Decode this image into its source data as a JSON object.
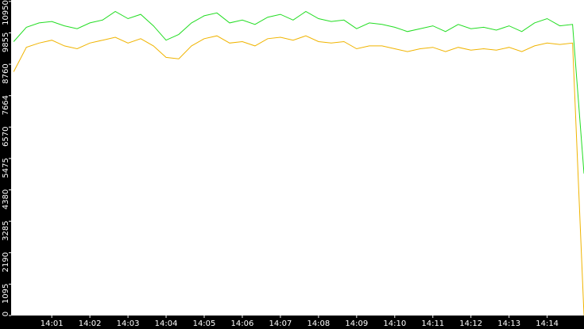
{
  "chart_data": {
    "type": "line",
    "x": [
      "14:00:00",
      "14:00:20",
      "14:00:40",
      "14:01:00",
      "14:01:20",
      "14:01:40",
      "14:02:00",
      "14:02:20",
      "14:02:40",
      "14:03:00",
      "14:03:20",
      "14:03:40",
      "14:04:00",
      "14:04:20",
      "14:04:40",
      "14:05:00",
      "14:05:20",
      "14:05:40",
      "14:06:00",
      "14:06:20",
      "14:06:40",
      "14:07:00",
      "14:07:20",
      "14:07:40",
      "14:08:00",
      "14:08:20",
      "14:08:40",
      "14:09:00",
      "14:09:20",
      "14:09:40",
      "14:10:00",
      "14:10:20",
      "14:10:40",
      "14:11:00",
      "14:11:20",
      "14:11:40",
      "14:12:00",
      "14:12:20",
      "14:12:40",
      "14:13:00",
      "14:13:20",
      "14:13:40",
      "14:14:00",
      "14:14:20",
      "14:14:40",
      "14:14:58"
    ],
    "series": [
      {
        "color": "#22dd22",
        "values": [
          9550,
          10050,
          10200,
          10250,
          10100,
          10000,
          10200,
          10300,
          10600,
          10350,
          10500,
          10100,
          9600,
          9800,
          10200,
          10450,
          10550,
          10200,
          10300,
          10150,
          10400,
          10500,
          10300,
          10600,
          10350,
          10250,
          10300,
          10000,
          10200,
          10150,
          10050,
          9900,
          10000,
          10100,
          9900,
          10150,
          10000,
          10050,
          9950,
          10100,
          9900,
          10200,
          10350,
          10100,
          10150,
          4950
        ]
      },
      {
        "color": "#f0b400",
        "values": [
          8500,
          9350,
          9500,
          9600,
          9400,
          9300,
          9500,
          9600,
          9700,
          9500,
          9650,
          9400,
          9000,
          8950,
          9400,
          9650,
          9750,
          9500,
          9550,
          9400,
          9650,
          9700,
          9600,
          9750,
          9550,
          9500,
          9550,
          9300,
          9400,
          9400,
          9300,
          9200,
          9300,
          9350,
          9200,
          9350,
          9250,
          9300,
          9250,
          9350,
          9200,
          9400,
          9500,
          9450,
          9500,
          0
        ]
      }
    ],
    "xlim": [
      "13:59:56",
      "14:14:58"
    ],
    "xticks": [
      "14:01",
      "14:02",
      "14:03",
      "14:04",
      "14:05",
      "14:06",
      "14:07",
      "14:08",
      "14:09",
      "14:10",
      "14:11",
      "14:12",
      "14:13",
      "14:14"
    ],
    "ylim": [
      0,
      11000
    ],
    "yticks": [
      0,
      1095,
      2190,
      3285,
      4380,
      5475,
      6570,
      7664,
      8760,
      9855,
      10950
    ]
  }
}
